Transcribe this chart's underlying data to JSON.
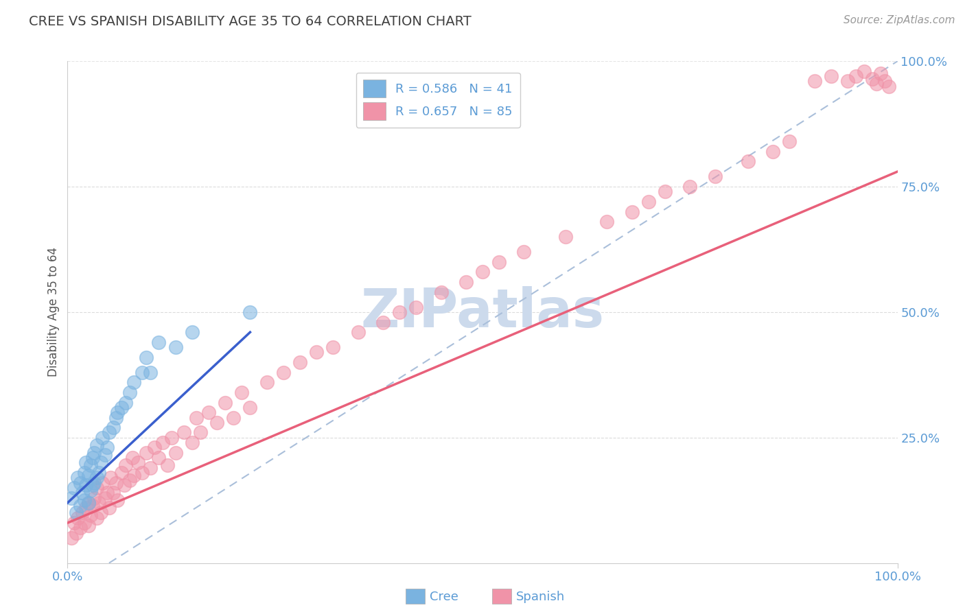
{
  "title": "CREE VS SPANISH DISABILITY AGE 35 TO 64 CORRELATION CHART",
  "source": "Source: ZipAtlas.com",
  "ylabel": "Disability Age 35 to 64",
  "cree_R": 0.586,
  "cree_N": 41,
  "spanish_R": 0.657,
  "spanish_N": 85,
  "cree_color": "#7ab3e0",
  "spanish_color": "#f093a8",
  "cree_line_color": "#3a5fcd",
  "spanish_line_color": "#e8607a",
  "dashed_line_color": "#aabfda",
  "title_color": "#404040",
  "axis_label_color": "#555555",
  "tick_color": "#5b9bd5",
  "source_color": "#999999",
  "watermark_color": "#ccdaec",
  "grid_color": "#cccccc",
  "background": "#ffffff",
  "xlim": [
    0.0,
    1.0
  ],
  "ylim": [
    0.0,
    1.0
  ],
  "cree_x": [
    0.005,
    0.008,
    0.01,
    0.012,
    0.015,
    0.015,
    0.018,
    0.02,
    0.02,
    0.022,
    0.022,
    0.025,
    0.025,
    0.028,
    0.028,
    0.03,
    0.03,
    0.032,
    0.032,
    0.035,
    0.035,
    0.038,
    0.04,
    0.042,
    0.045,
    0.048,
    0.05,
    0.055,
    0.058,
    0.06,
    0.065,
    0.07,
    0.075,
    0.08,
    0.09,
    0.095,
    0.1,
    0.11,
    0.13,
    0.15,
    0.22
  ],
  "cree_y": [
    0.13,
    0.15,
    0.1,
    0.17,
    0.115,
    0.16,
    0.14,
    0.125,
    0.18,
    0.155,
    0.2,
    0.12,
    0.175,
    0.145,
    0.195,
    0.155,
    0.21,
    0.16,
    0.22,
    0.17,
    0.235,
    0.18,
    0.2,
    0.25,
    0.215,
    0.23,
    0.26,
    0.27,
    0.29,
    0.3,
    0.31,
    0.32,
    0.34,
    0.36,
    0.38,
    0.41,
    0.38,
    0.44,
    0.43,
    0.46,
    0.5
  ],
  "spanish_x": [
    0.005,
    0.008,
    0.01,
    0.012,
    0.015,
    0.018,
    0.02,
    0.022,
    0.025,
    0.025,
    0.028,
    0.03,
    0.032,
    0.035,
    0.035,
    0.038,
    0.04,
    0.042,
    0.045,
    0.048,
    0.05,
    0.052,
    0.055,
    0.058,
    0.06,
    0.065,
    0.068,
    0.07,
    0.075,
    0.078,
    0.08,
    0.085,
    0.09,
    0.095,
    0.1,
    0.105,
    0.11,
    0.115,
    0.12,
    0.125,
    0.13,
    0.14,
    0.15,
    0.155,
    0.16,
    0.17,
    0.18,
    0.19,
    0.2,
    0.21,
    0.22,
    0.24,
    0.26,
    0.28,
    0.3,
    0.32,
    0.35,
    0.38,
    0.4,
    0.42,
    0.45,
    0.48,
    0.5,
    0.52,
    0.55,
    0.6,
    0.65,
    0.68,
    0.7,
    0.72,
    0.75,
    0.78,
    0.82,
    0.85,
    0.87,
    0.9,
    0.92,
    0.94,
    0.95,
    0.96,
    0.97,
    0.975,
    0.98,
    0.985,
    0.99
  ],
  "spanish_y": [
    0.05,
    0.08,
    0.06,
    0.09,
    0.07,
    0.1,
    0.08,
    0.11,
    0.075,
    0.12,
    0.095,
    0.115,
    0.13,
    0.09,
    0.15,
    0.12,
    0.1,
    0.16,
    0.13,
    0.14,
    0.11,
    0.17,
    0.14,
    0.16,
    0.125,
    0.18,
    0.155,
    0.195,
    0.165,
    0.21,
    0.175,
    0.2,
    0.18,
    0.22,
    0.19,
    0.23,
    0.21,
    0.24,
    0.195,
    0.25,
    0.22,
    0.26,
    0.24,
    0.29,
    0.26,
    0.3,
    0.28,
    0.32,
    0.29,
    0.34,
    0.31,
    0.36,
    0.38,
    0.4,
    0.42,
    0.43,
    0.46,
    0.48,
    0.5,
    0.51,
    0.54,
    0.56,
    0.58,
    0.6,
    0.62,
    0.65,
    0.68,
    0.7,
    0.72,
    0.74,
    0.75,
    0.77,
    0.8,
    0.82,
    0.84,
    0.96,
    0.97,
    0.96,
    0.97,
    0.98,
    0.965,
    0.955,
    0.975,
    0.96,
    0.95
  ],
  "cree_line_x0": 0.0,
  "cree_line_y0": 0.12,
  "cree_line_x1": 0.22,
  "cree_line_y1": 0.46,
  "spanish_line_x0": 0.0,
  "spanish_line_y0": 0.08,
  "spanish_line_x1": 1.0,
  "spanish_line_y1": 0.78,
  "dashed_line_x0": 0.05,
  "dashed_line_y0": 0.0,
  "dashed_line_x1": 1.0,
  "dashed_line_y1": 1.0
}
